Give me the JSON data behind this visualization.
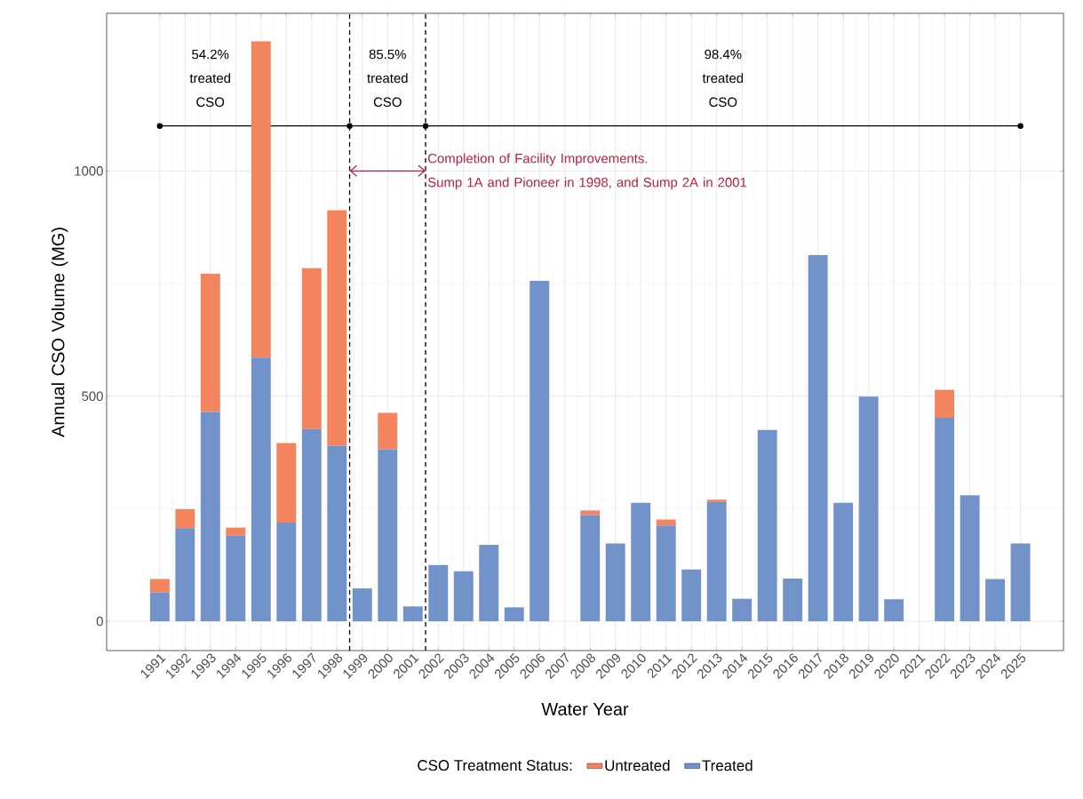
{
  "chart_data": {
    "type": "bar",
    "stacked": true,
    "xlabel": "Water Year",
    "ylabel": "Annual CSO Volume (MG)",
    "legend_title": "CSO Treatment Status:",
    "x": [
      1991,
      1992,
      1993,
      1994,
      1995,
      1996,
      1997,
      1998,
      1999,
      2000,
      2001,
      2002,
      2003,
      2004,
      2005,
      2006,
      2007,
      2008,
      2009,
      2010,
      2011,
      2012,
      2013,
      2014,
      2015,
      2016,
      2017,
      2018,
      2019,
      2020,
      2021,
      2022,
      2023,
      2024,
      2025
    ],
    "series": [
      {
        "name": "Treated",
        "color": "#7293c9",
        "values": [
          64,
          207,
          465,
          190,
          586,
          219,
          427,
          390,
          73,
          382,
          33,
          125,
          111,
          170,
          31,
          756,
          0,
          236,
          173,
          263,
          213,
          115,
          265,
          50,
          425,
          95,
          813,
          263,
          499,
          49,
          0,
          452,
          280,
          94,
          173
        ]
      },
      {
        "name": "Untreated",
        "color": "#f3845e",
        "values": [
          30,
          42,
          307,
          18,
          702,
          177,
          357,
          523,
          0,
          81,
          0,
          0,
          0,
          0,
          0,
          0,
          0,
          10,
          0,
          0,
          13,
          0,
          5,
          0,
          0,
          0,
          0,
          0,
          0,
          0,
          0,
          62,
          0,
          0,
          0
        ]
      },
      {
        "type": "line",
        "color": "#000000",
        "marker": "circle",
        "x": [
          1991,
          1998.5,
          2001.5,
          2025
        ],
        "values": [
          1100,
          1100,
          1100,
          1100
        ]
      }
    ],
    "xlim": [
      1988.9,
      2026.7
    ],
    "ylim": [
      -65,
      1350
    ],
    "xticks": [
      1991,
      1992,
      1993,
      1994,
      1995,
      1996,
      1997,
      1998,
      1999,
      2000,
      2001,
      2002,
      2003,
      2004,
      2005,
      2006,
      2007,
      2008,
      2009,
      2010,
      2011,
      2012,
      2013,
      2014,
      2015,
      2016,
      2017,
      2018,
      2019,
      2020,
      2021,
      2022,
      2023,
      2024,
      2025
    ],
    "yticks": [
      0,
      500,
      1000
    ],
    "ref_lines": [
      {
        "axis": "x",
        "value": 1998.5,
        "color": "#000000",
        "line_style": "dashed"
      },
      {
        "axis": "x",
        "value": 2001.5,
        "color": "#000000",
        "line_style": "dashed"
      }
    ],
    "annotations": [
      "54.2% treated CSO",
      "85.5% treated CSO",
      "98.4% treated CSO",
      {
        "text": "Completion of Facility Improvements. Sump 1A and Pioneer in 1998, and Sump 2A in 2001",
        "x": 2001.5,
        "y": 1000
      }
    ],
    "grid": true,
    "legend": "bottom"
  }
}
